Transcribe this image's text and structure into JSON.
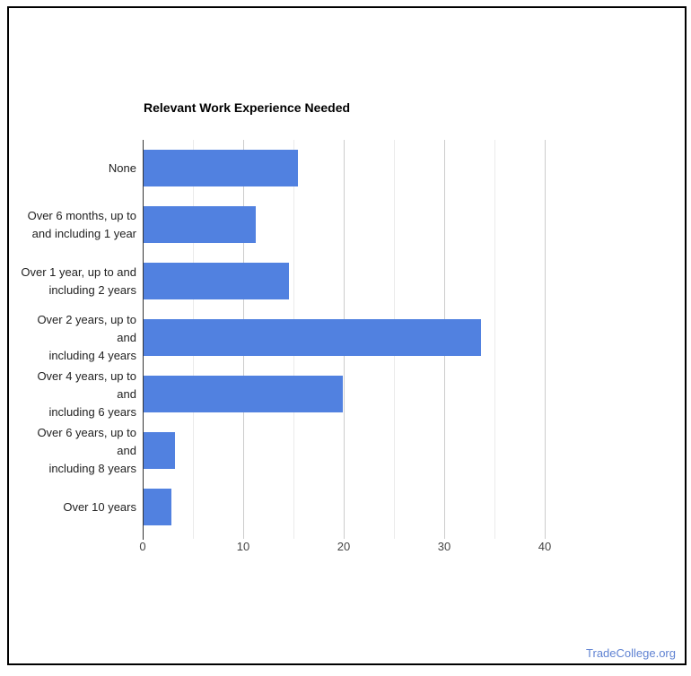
{
  "page": {
    "background_color": "#ffffff",
    "frame_border_color": "#000000"
  },
  "footer": {
    "brand": "TradeCollege.org",
    "brand_color": "#5f82d2"
  },
  "chart_data": {
    "type": "bar",
    "orientation": "horizontal",
    "title": "Relevant Work Experience Needed",
    "categories": [
      "None",
      "Over 6 months, up to\nand including 1 year",
      "Over 1 year, up to and\nincluding 2 years",
      "Over 2 years, up to and\nincluding 4 years",
      "Over 4 years, up to and\nincluding 6 years",
      "Over 6 years, up to and\nincluding 8 years",
      "Over 10 years"
    ],
    "values": [
      15.4,
      11.2,
      14.5,
      33.6,
      19.8,
      3.1,
      2.8
    ],
    "xlabel": "",
    "ylabel": "",
    "xlim": [
      0,
      45
    ],
    "x_ticks": [
      0,
      10,
      20,
      30,
      40
    ],
    "x_minor_gridlines": [
      5,
      15,
      25,
      35
    ],
    "grid": true,
    "legend": "none",
    "bar_color": "#5181e0",
    "gridline_major_color": "#cccccc",
    "gridline_minor_color": "#ebebeb",
    "axis_line_color": "#333333",
    "tick_label_color": "#444444",
    "category_label_color": "#222222",
    "title_color": "#000000"
  }
}
